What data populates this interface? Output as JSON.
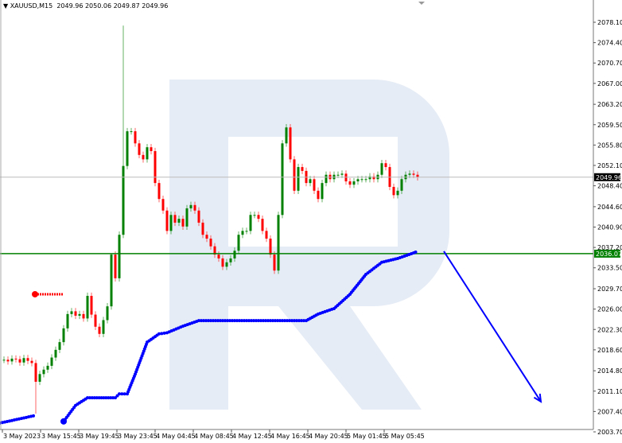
{
  "header": {
    "symbol": "XAUUSD,M15",
    "ohlc": "2049.96 2050.06 2049.87 2049.96"
  },
  "chart_data": {
    "type": "candlestick",
    "symbol": "XAUUSD",
    "timeframe": "M15",
    "ylim": [
      2003.7,
      2078.1
    ],
    "y_ticks": [
      "2078.10",
      "2074.40",
      "2070.70",
      "2067.00",
      "2063.20",
      "2059.50",
      "2055.80",
      "2052.10",
      "2048.40",
      "2044.60",
      "2040.90",
      "2037.20",
      "2033.50",
      "2029.70",
      "2026.00",
      "2022.30",
      "2018.60",
      "2014.80",
      "2011.10",
      "2007.40",
      "2003.70"
    ],
    "x_ticks": [
      "3 May 2023",
      "3 May 15:45",
      "3 May 19:45",
      "3 May 23:45",
      "4 May 04:45",
      "4 May 08:45",
      "4 May 12:45",
      "4 May 16:45",
      "4 May 20:45",
      "5 May 01:45",
      "5 May 05:45"
    ],
    "closes": [
      2016.8,
      2016.5,
      2017.0,
      2016.9,
      2016.3,
      2017.1,
      2016.6,
      2016.2,
      2012.8,
      2014.2,
      2015.0,
      2015.7,
      2017.2,
      2018.6,
      2020.0,
      2022.5,
      2025.1,
      2025.6,
      2024.8,
      2025.1,
      2024.3,
      2028.4,
      2025.0,
      2022.8,
      2021.5,
      2024.0,
      2026.5,
      2035.9,
      2031.6,
      2039.5,
      2052.0,
      2058.3,
      2058.3,
      2056.1,
      2054.0,
      2053.2,
      2055.4,
      2054.7,
      2048.9,
      2046.0,
      2043.9,
      2040.2,
      2043.1,
      2041.7,
      2042.4,
      2041.0,
      2044.3,
      2044.9,
      2043.9,
      2041.7,
      2039.5,
      2038.8,
      2037.4,
      2035.9,
      2035.2,
      2033.7,
      2034.5,
      2035.2,
      2036.6,
      2039.5,
      2040.2,
      2040.2,
      2043.1,
      2043.1,
      2042.4,
      2040.2,
      2038.8,
      2035.9,
      2033.0,
      2043.1,
      2056.1,
      2059.0,
      2053.2,
      2047.5,
      2051.8,
      2051.1,
      2048.9,
      2049.6,
      2047.5,
      2046.0,
      2048.9,
      2050.4,
      2049.6,
      2050.4,
      2050.4,
      2050.6,
      2049.2,
      2048.6,
      2049.2,
      2049.6,
      2049.6,
      2049.6,
      2050.1,
      2049.6,
      2050.4,
      2052.5,
      2051.8,
      2048.2,
      2046.7,
      2047.5,
      2049.6,
      2050.4,
      2050.6,
      2050.4,
      2049.96
    ],
    "notable_highs": [
      {
        "bar": 30,
        "high": 2077.5
      },
      {
        "bar": 27,
        "high": 2036.1
      }
    ],
    "notable_lows": [
      {
        "bar": 8,
        "low": 2007.0
      }
    ],
    "indicator_dots": [
      {
        "segment": [
          [
            -1,
            2005.3
          ],
          [
            8,
            2006.7
          ]
        ]
      },
      {
        "segment": [
          [
            15,
            2005.6
          ],
          [
            18,
            2008.5
          ],
          [
            21,
            2009.9
          ],
          [
            28,
            2009.9
          ],
          [
            29,
            2010.6
          ],
          [
            31,
            2010.6
          ],
          [
            33,
            2014.2
          ],
          [
            36,
            2020.0
          ],
          [
            39,
            2021.5
          ],
          [
            41,
            2021.7
          ],
          [
            45,
            2022.9
          ],
          [
            49,
            2023.9
          ],
          [
            76,
            2023.9
          ],
          [
            79,
            2025.1
          ],
          [
            83,
            2026.1
          ],
          [
            87,
            2028.7
          ],
          [
            91,
            2032.3
          ],
          [
            95,
            2034.5
          ],
          [
            99,
            2035.2
          ],
          [
            103,
            2036.2
          ],
          [
            104,
            2036.5
          ]
        ]
      }
    ],
    "levels": [
      {
        "price": 2036.07,
        "label": "2036.07",
        "color": "#008000"
      },
      {
        "price": 2049.96,
        "label": "2049.96",
        "color": "#000000"
      }
    ],
    "red_level": {
      "price": 2028.7,
      "from_bar": 8,
      "to_bar": 15
    },
    "forecast_arrow": {
      "from_price": 2036.5,
      "to_price": 2009.2
    },
    "colors": {
      "bull": "#008000",
      "bear": "#ff0000",
      "indicator": "#0000ff",
      "watermark": "#e6ecf5"
    }
  }
}
